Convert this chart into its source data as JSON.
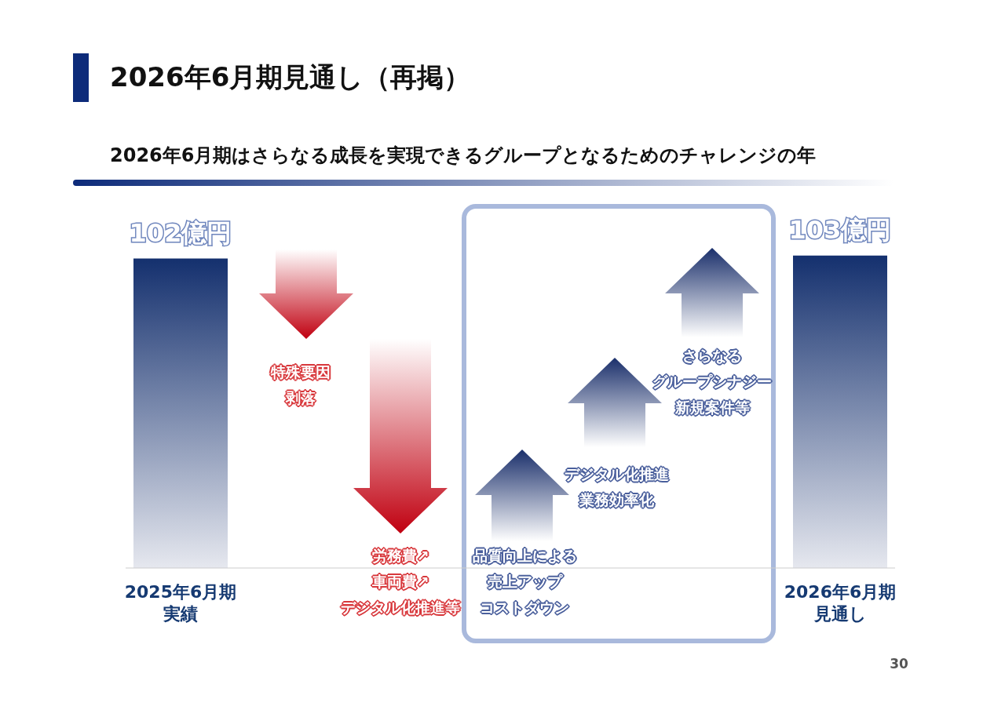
{
  "chart_data": {
    "type": "bar",
    "title": "2026年6月期見通し（再掲）",
    "subtitle": "2026年6月期はさらなる成長を実現できるグループとなるためのチャレンジの年",
    "categories": [
      "2025年6月期実績",
      null,
      null,
      null,
      null,
      null,
      "2026年6月期見通し"
    ],
    "values": [
      102,
      null,
      null,
      null,
      null,
      null,
      103
    ],
    "value_labels": [
      "102億円",
      null,
      null,
      null,
      null,
      null,
      "103億円"
    ],
    "color": "#14306e",
    "annotations": [
      "特殊要因剥落",
      "労務費↗車両費↗デジタル化推進等",
      "品質向上による売上アップコストダウン",
      "デジタル化推進業務効率化",
      "さらなるグループシナジー新規案件等",
      "30"
    ]
  }
}
